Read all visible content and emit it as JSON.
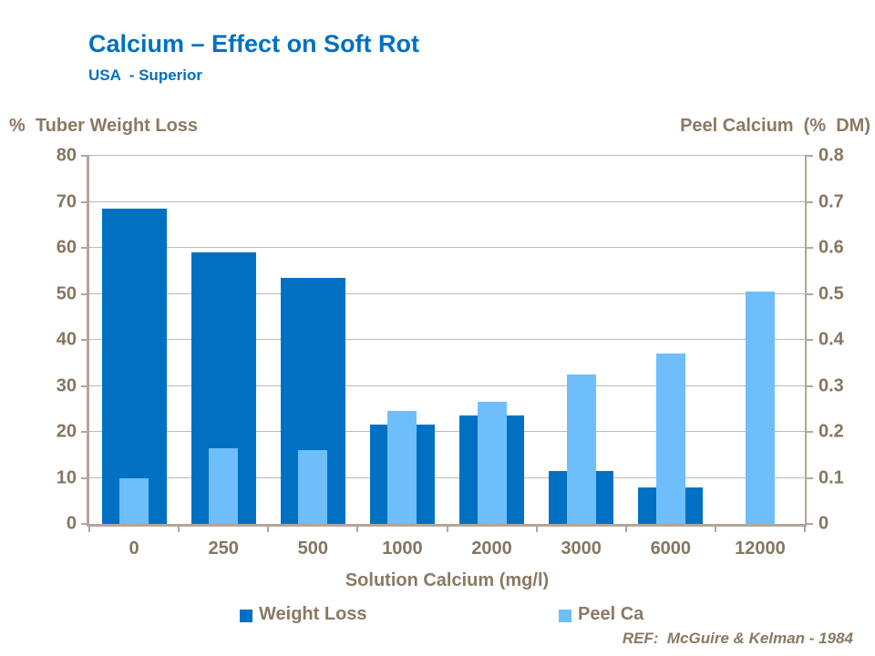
{
  "header": {
    "title": "Calcium – Effect on Soft Rot",
    "subtitle": "USA  - Superior"
  },
  "chart_data": {
    "type": "bar",
    "categories": [
      "0",
      "250",
      "500",
      "1000",
      "2000",
      "3000",
      "6000",
      "12000"
    ],
    "series": [
      {
        "name": "Weight Loss",
        "axis": "left",
        "color": "#0071C2",
        "values": [
          68.5,
          59,
          53.5,
          21.5,
          23.5,
          11.5,
          8,
          null
        ]
      },
      {
        "name": "Peel Ca",
        "axis": "right",
        "color": "#6EBEFC",
        "values": [
          0.1,
          0.165,
          0.16,
          0.245,
          0.265,
          0.325,
          0.37,
          0.505
        ]
      }
    ],
    "left_axis": {
      "title": "%  Tuber Weight Loss",
      "min": 0,
      "max": 80,
      "tick_labels": [
        "0",
        "10",
        "20",
        "30",
        "40",
        "50",
        "60",
        "70",
        "80"
      ]
    },
    "right_axis": {
      "title": "Peel Calcium  (%  DM)",
      "min": 0,
      "max": 0.8,
      "tick_labels": [
        "0",
        "0.1",
        "0.2",
        "0.3",
        "0.4",
        "0.5",
        "0.6",
        "0.7",
        "0.8"
      ]
    },
    "xlabel": "Solution Calcium (mg/l)",
    "grid": true,
    "legend_position": "bottom"
  },
  "footer": {
    "ref": "REF:  McGuire & Kelman - 1984"
  },
  "colors": {
    "title_blue": "#0070C0",
    "weight_loss_bar": "#0071C2",
    "peel_ca_bar": "#6EBEFC",
    "axis_text_brown": "#8A7963",
    "gridline": "#C1B9AE",
    "axis_line": "#B1A69B"
  }
}
